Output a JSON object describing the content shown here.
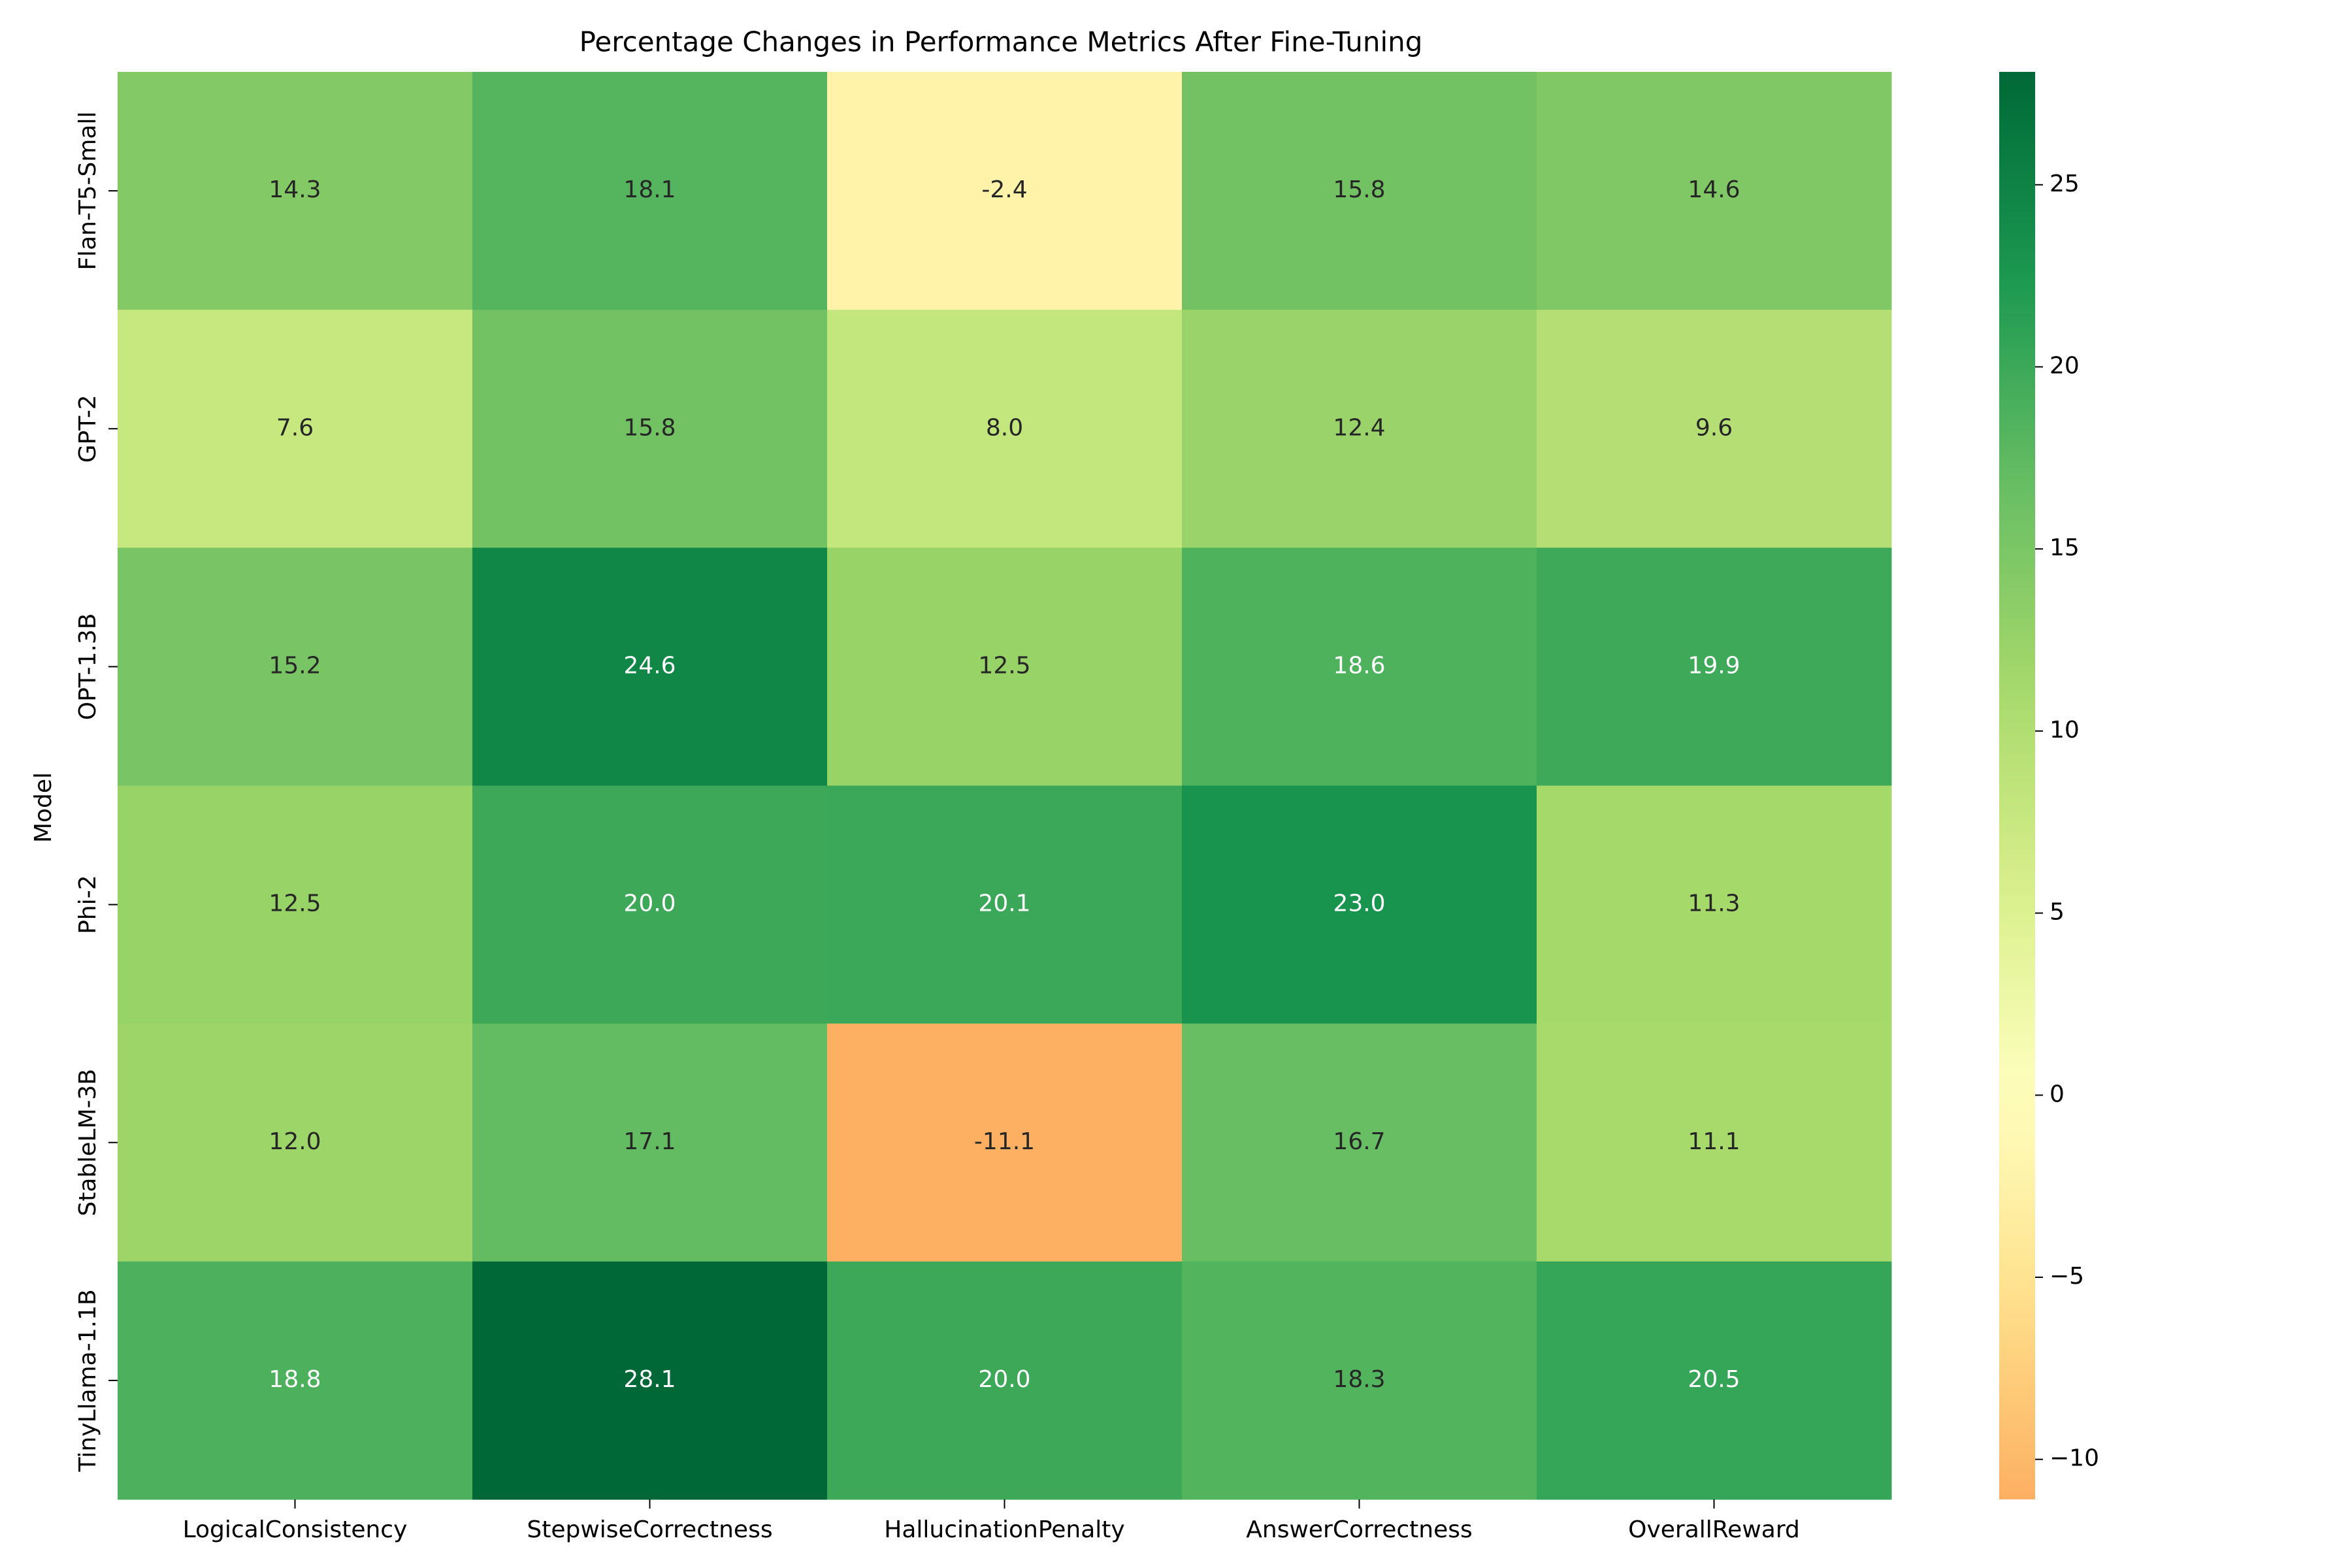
{
  "chart_data": {
    "type": "heatmap",
    "title": "Percentage Changes in Performance Metrics After Fine-Tuning",
    "xlabel": "",
    "ylabel": "Model",
    "columns": [
      "LogicalConsistency",
      "StepwiseCorrectness",
      "HallucinationPenalty",
      "AnswerCorrectness",
      "OverallReward"
    ],
    "rows": [
      "Flan-T5-Small",
      "GPT-2",
      "OPT-1.3B",
      "Phi-2",
      "StableLM-3B",
      "TinyLlama-1.1B"
    ],
    "values": [
      [
        14.3,
        18.1,
        -2.4,
        15.8,
        14.6
      ],
      [
        7.6,
        15.8,
        8.0,
        12.4,
        9.6
      ],
      [
        15.2,
        24.6,
        12.5,
        18.6,
        19.9
      ],
      [
        12.5,
        20.0,
        20.1,
        23.0,
        11.3
      ],
      [
        12.0,
        17.1,
        -11.1,
        16.7,
        11.1
      ],
      [
        18.8,
        28.1,
        20.0,
        18.3,
        20.5
      ]
    ],
    "colormap": "RdYlGn",
    "center": 0,
    "vmin": -11.1,
    "vmax": 28.1,
    "colorbar_ticks": [
      -10,
      -5,
      0,
      5,
      10,
      15,
      20,
      25
    ],
    "annotation_format": "0.1f",
    "grid": false,
    "legend": "colorbar-right"
  }
}
